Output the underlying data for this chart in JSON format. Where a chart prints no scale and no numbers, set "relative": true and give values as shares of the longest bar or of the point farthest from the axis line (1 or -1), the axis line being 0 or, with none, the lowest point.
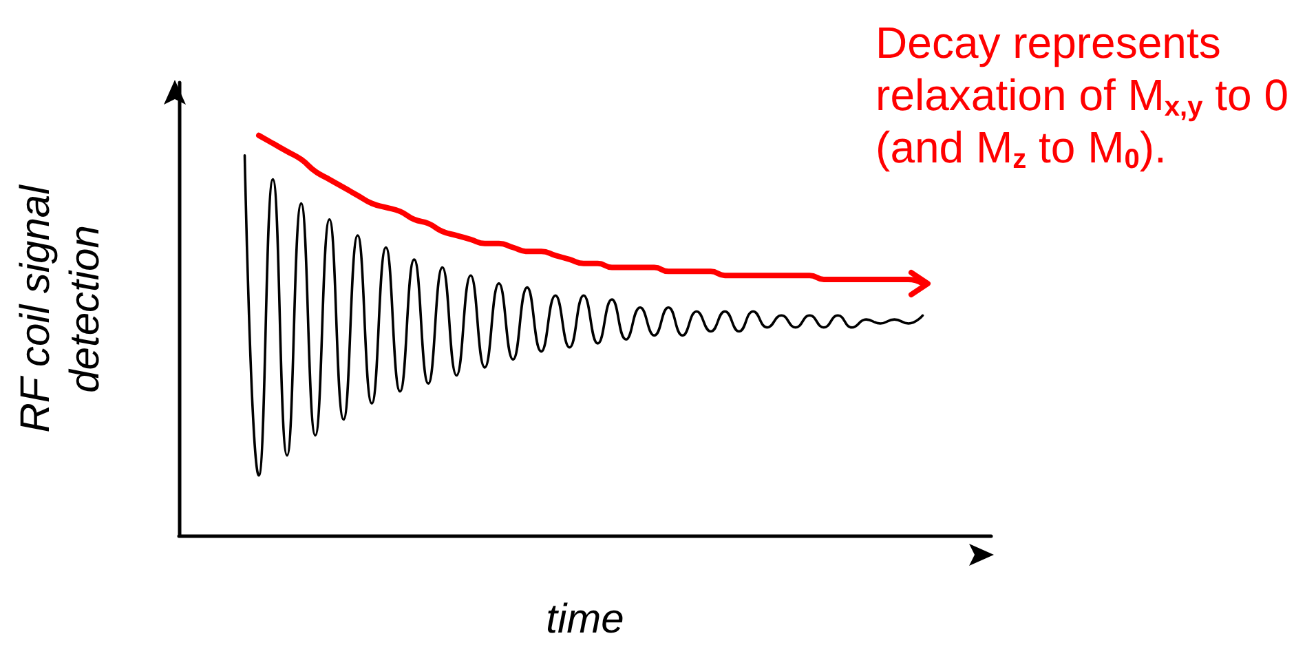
{
  "chart_data": {
    "type": "line",
    "relative": true,
    "xlabel": "time",
    "ylabel": "RF coil signal\ndetection",
    "tick_labels": false,
    "categories": [
      null,
      null,
      null,
      null,
      null,
      null,
      null,
      null,
      null,
      null,
      null,
      null,
      null,
      null,
      null,
      null,
      null,
      null,
      null,
      null,
      null,
      null,
      null,
      null,
      null,
      null,
      null,
      null,
      null,
      null,
      null,
      null,
      null,
      null,
      null,
      null,
      null,
      null,
      null,
      null,
      null,
      null,
      null,
      null,
      null,
      null,
      null,
      null,
      null
    ],
    "series": [
      {
        "color": "#000000",
        "values": [
          0.95,
          0.15,
          0.89,
          0.2,
          0.83,
          0.25,
          0.79,
          0.29,
          0.75,
          0.33,
          0.72,
          0.36,
          0.69,
          0.38,
          0.67,
          0.4,
          0.65,
          0.42,
          0.63,
          0.44,
          0.62,
          0.46,
          0.6,
          0.47,
          0.6,
          0.48,
          0.59,
          0.49,
          0.57,
          0.5,
          0.57,
          0.5,
          0.56,
          0.51,
          0.56,
          0.51,
          0.56,
          0.52,
          0.55,
          0.52,
          0.55,
          0.52,
          0.55,
          0.52,
          0.54,
          0.53,
          0.54,
          0.53,
          0.55
        ]
      },
      {
        "color": "#ff0000",
        "values": [
          null,
          1.0,
          0.98,
          0.96,
          0.94,
          0.91,
          0.89,
          0.87,
          0.85,
          0.83,
          0.82,
          0.81,
          0.79,
          0.78,
          0.76,
          0.75,
          0.74,
          0.73,
          0.73,
          0.72,
          0.71,
          0.71,
          0.7,
          0.69,
          0.68,
          0.68,
          0.67,
          0.67,
          0.67,
          0.67,
          0.66,
          0.66,
          0.66,
          0.66,
          0.65,
          0.65,
          0.65,
          0.65,
          0.65,
          0.65,
          0.65,
          0.64,
          0.64,
          0.64,
          0.64,
          0.64,
          0.64,
          0.64,
          0.63
        ]
      }
    ],
    "annotations": [
      "Decay represents\nrelaxation of M$_{x,y}$ to 0\n(and M$_{z}$ to M$_{0}$)."
    ]
  }
}
